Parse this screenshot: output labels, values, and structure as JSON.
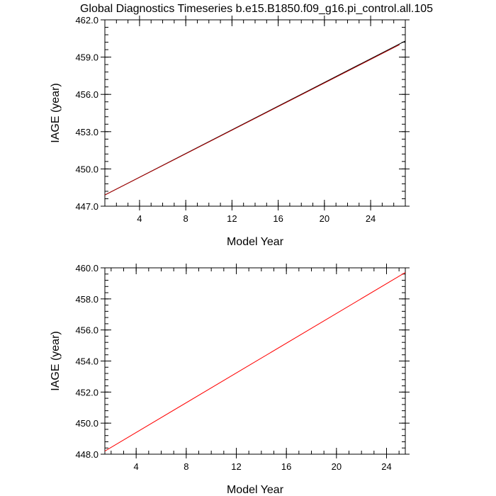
{
  "figure": {
    "title": "Global Diagnostics Timeseries b.e15.B1850.f09_g16.pi_control.all.105"
  },
  "chart_data": [
    {
      "type": "line",
      "xlabel": "Model Year",
      "ylabel": "IAGE (year)",
      "xlim": [
        1,
        27
      ],
      "ylim": [
        447.0,
        462.0
      ],
      "x_ticks": [
        "4",
        "8",
        "12",
        "16",
        "20",
        "24"
      ],
      "y_ticks": [
        "447.0",
        "450.0",
        "453.0",
        "456.0",
        "459.0",
        "462.0"
      ],
      "grid": false,
      "series": [
        {
          "color": "#000000",
          "x": [
            1,
            27
          ],
          "y": [
            447.9,
            460.3
          ]
        },
        {
          "color": "#b00000",
          "x": [
            1,
            26.5
          ],
          "y": [
            447.9,
            460.0
          ]
        }
      ]
    },
    {
      "type": "line",
      "xlabel": "Model Year",
      "ylabel": "IAGE (year)",
      "xlim": [
        1.5,
        25.5
      ],
      "ylim": [
        448.0,
        460.0
      ],
      "x_ticks": [
        "4",
        "8",
        "12",
        "16",
        "20",
        "24"
      ],
      "y_ticks": [
        "448.0",
        "450.0",
        "452.0",
        "454.0",
        "456.0",
        "458.0",
        "460.0"
      ],
      "grid": false,
      "series": [
        {
          "color": "#ff0000",
          "x": [
            1.5,
            25.5
          ],
          "y": [
            448.2,
            459.7
          ]
        }
      ]
    }
  ]
}
